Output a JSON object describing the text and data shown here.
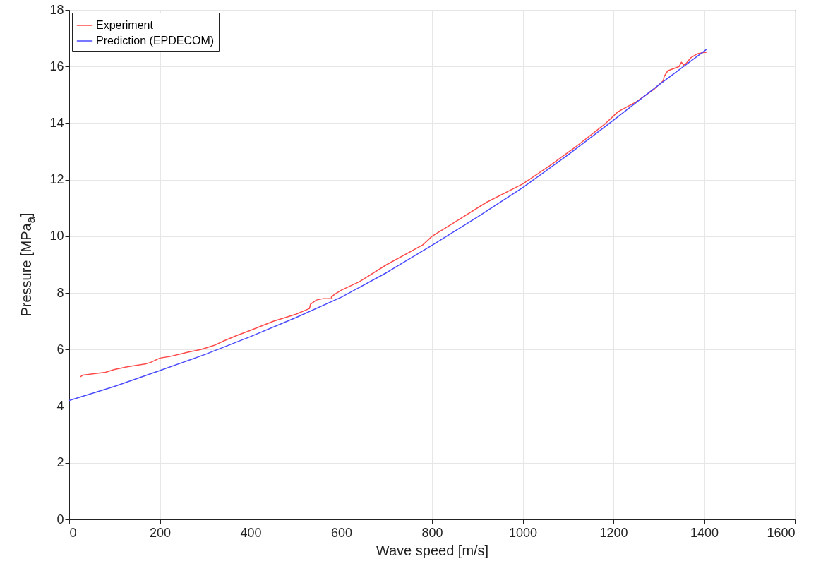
{
  "chart_data": {
    "type": "line",
    "xlabel": "Wave speed [m/s]",
    "ylabel": "Pressure [MPa$_{a}$]",
    "xlim": [
      0,
      1600
    ],
    "xticks": [
      0,
      200,
      400,
      600,
      800,
      1000,
      1200,
      1400,
      1600
    ],
    "ylim": [
      0,
      18
    ],
    "yticks": [
      0,
      2,
      4,
      6,
      8,
      10,
      12,
      14,
      16,
      18
    ],
    "grid": true,
    "legend": "top left",
    "marker": "none",
    "line_style": "solid",
    "series": [
      {
        "name": "Experiment",
        "color": "#ff4a4a",
        "x": [
          25,
          30,
          80,
          100,
          130,
          170,
          180,
          200,
          220,
          260,
          290,
          320,
          340,
          370,
          400,
          450,
          500,
          530,
          532,
          545,
          560,
          580,
          578,
          585,
          600,
          640,
          700,
          780,
          800,
          860,
          920,
          1000,
          1060,
          1120,
          1180,
          1210,
          1250,
          1290,
          1310,
          1312,
          1320,
          1345,
          1350,
          1355,
          1360,
          1370,
          1385,
          1400,
          1405
        ],
        "values": [
          5.04,
          5.1,
          5.2,
          5.3,
          5.4,
          5.5,
          5.55,
          5.7,
          5.75,
          5.9,
          6.0,
          6.15,
          6.3,
          6.5,
          6.68,
          7.0,
          7.25,
          7.45,
          7.6,
          7.75,
          7.8,
          7.8,
          7.85,
          7.95,
          8.1,
          8.4,
          9.0,
          9.7,
          10.0,
          10.6,
          11.2,
          11.85,
          12.5,
          13.2,
          13.95,
          14.4,
          14.75,
          15.2,
          15.5,
          15.65,
          15.85,
          16.0,
          16.15,
          16.05,
          16.1,
          16.3,
          16.45,
          16.5,
          16.5
        ]
      },
      {
        "name": "Prediction (EPDECOM)",
        "color": "#4a4aff",
        "x": [
          0,
          100,
          200,
          300,
          400,
          500,
          600,
          700,
          800,
          900,
          1000,
          1100,
          1200,
          1300,
          1405
        ],
        "values": [
          4.2,
          4.7,
          5.26,
          5.83,
          6.46,
          7.13,
          7.85,
          8.72,
          9.68,
          10.68,
          11.72,
          12.88,
          14.1,
          15.35,
          16.6
        ]
      }
    ]
  }
}
